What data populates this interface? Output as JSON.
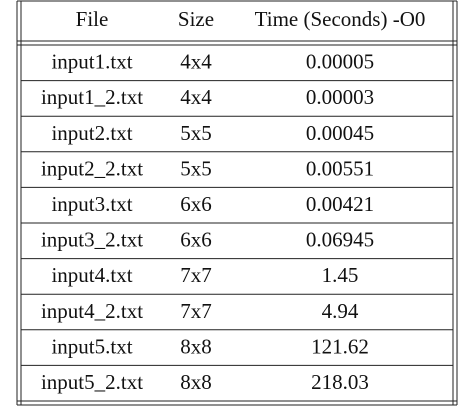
{
  "table": {
    "header": [
      "File",
      "Size",
      "Time (Seconds) -O0"
    ],
    "rows": [
      [
        "input1.txt",
        "4x4",
        "0.00005"
      ],
      [
        "input1_2.txt",
        "4x4",
        "0.00003"
      ],
      [
        "input2.txt",
        "5x5",
        "0.00045"
      ],
      [
        "input2_2.txt",
        "5x5",
        "0.00551"
      ],
      [
        "input3.txt",
        "6x6",
        "0.00421"
      ],
      [
        "input3_2.txt",
        "6x6",
        "0.06945"
      ],
      [
        "input4.txt",
        "7x7",
        "1.45"
      ],
      [
        "input4_2.txt",
        "7x7",
        "4.94"
      ],
      [
        "input5.txt",
        "8x8",
        "121.62"
      ],
      [
        "input5_2.txt",
        "8x8",
        "218.03"
      ]
    ]
  }
}
